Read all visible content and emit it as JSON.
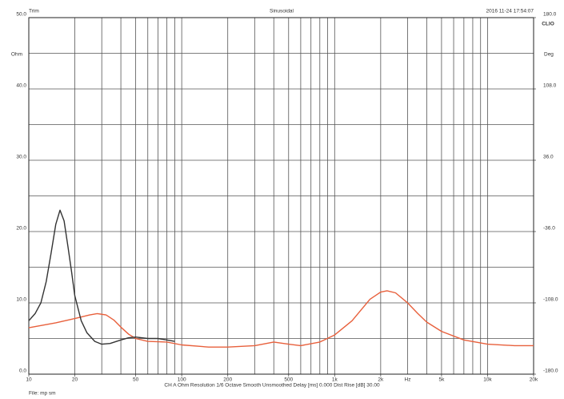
{
  "chart_data": {
    "type": "line",
    "title": "Sinusoidal",
    "top_left": "Trim",
    "timestamp": "2016 11-24 17:54:07",
    "brand": "CLIO",
    "y_label": "Ohm",
    "y2_label": "Deg",
    "x_unit_label": "Hz",
    "footer": "CH A   Ohm   Resolution 1/6 Octave   Smooth Unsmoothed   Delay [ms] 0.000   Dist Rise [dB] 30.00",
    "file_label": "File: mp sm",
    "log_x": true,
    "grid": true,
    "xlim": [
      10,
      20000
    ],
    "xticks": [
      10,
      20,
      50,
      100,
      200,
      500,
      {
        "value": 1000,
        "label": "1k"
      },
      {
        "value": 2000,
        "label": "2k"
      },
      {
        "value": 5000,
        "label": "5k"
      },
      {
        "value": 10000,
        "label": "10k"
      },
      {
        "value": 20000,
        "label": "20k"
      }
    ],
    "ylim": [
      0,
      50
    ],
    "yticks": [
      {
        "value": 0,
        "label": "0.0"
      },
      {
        "value": 10,
        "label": "10.0"
      },
      {
        "value": 20,
        "label": "20.0"
      },
      {
        "value": 30,
        "label": "30.0"
      },
      {
        "value": 40,
        "label": "40.0"
      },
      {
        "value": 50,
        "label": "50.0"
      }
    ],
    "y2lim": [
      -180,
      180
    ],
    "y2ticks": [
      {
        "value": -180,
        "label": "-180.0"
      },
      {
        "value": -108,
        "label": "-108.0"
      },
      {
        "value": -36,
        "label": "-36.0"
      },
      {
        "value": 36,
        "label": "36.0"
      },
      {
        "value": 108,
        "label": "108.0"
      },
      {
        "value": 180,
        "label": "180.0"
      }
    ],
    "series": [
      {
        "color": "#333333",
        "x": [
          10,
          11,
          12,
          13,
          14,
          15,
          16,
          17,
          18,
          19,
          20,
          22,
          24,
          27,
          30,
          34,
          40,
          45,
          50,
          60,
          70,
          80,
          90
        ],
        "values": [
          7.5,
          8.5,
          10,
          13,
          17,
          21,
          23,
          21.5,
          18,
          14.5,
          11,
          7.5,
          5.8,
          4.6,
          4.2,
          4.3,
          4.8,
          5.1,
          5.2,
          5.0,
          5.0,
          4.8,
          4.6
        ]
      },
      {
        "color": "#e8603c",
        "x": [
          10,
          15,
          20,
          25,
          28,
          32,
          36,
          40,
          45,
          50,
          60,
          80,
          100,
          150,
          200,
          300,
          400,
          500,
          600,
          800,
          1000,
          1300,
          1700,
          2000,
          2200,
          2500,
          3000,
          3500,
          4000,
          5000,
          7000,
          10000,
          15000,
          20000
        ],
        "values": [
          6.5,
          7.2,
          7.8,
          8.3,
          8.5,
          8.3,
          7.6,
          6.6,
          5.6,
          5.0,
          4.6,
          4.5,
          4.1,
          3.8,
          3.8,
          4.0,
          4.5,
          4.2,
          4.0,
          4.5,
          5.5,
          7.5,
          10.5,
          11.5,
          11.7,
          11.4,
          10.0,
          8.5,
          7.3,
          6.0,
          4.8,
          4.2,
          4.0,
          4.0
        ]
      }
    ]
  }
}
